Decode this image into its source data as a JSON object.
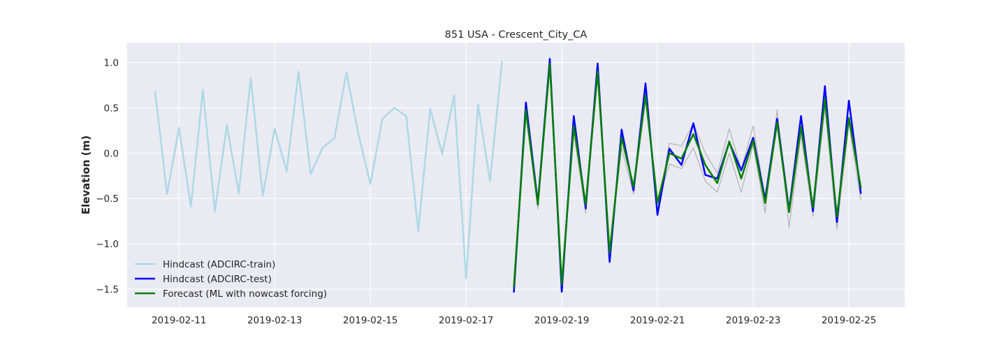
{
  "chart_data": {
    "type": "line",
    "title": "851 USA - Crescent_City_CA",
    "xlabel": "",
    "ylabel": "Elevation (m)",
    "x_axis": "date",
    "xlim": [
      "2019-02-09T22:00",
      "2019-02-26T04:00"
    ],
    "ylim": [
      -1.7,
      1.22
    ],
    "x_ticks": [
      "2019-02-11",
      "2019-02-13",
      "2019-02-15",
      "2019-02-17",
      "2019-02-19",
      "2019-02-21",
      "2019-02-23",
      "2019-02-25"
    ],
    "y_ticks": [
      -1.5,
      -1.0,
      -0.5,
      0.0,
      0.5,
      1.0
    ],
    "y_tick_labels": [
      "−1.5",
      "−1.0",
      "−0.5",
      "0.0",
      "0.5",
      "1.0"
    ],
    "grid": true,
    "background": "#eaeaf2",
    "legend_position": "lower-left",
    "series": [
      {
        "name": "Hindcast (ADCIRC-train)",
        "color": "#add8e6",
        "line_width": 2.5,
        "x": [
          "2019-02-10T12:00",
          "2019-02-10T18:00",
          "2019-02-11T00:00",
          "2019-02-11T06:00",
          "2019-02-11T12:00",
          "2019-02-11T18:00",
          "2019-02-12T00:00",
          "2019-02-12T06:00",
          "2019-02-12T12:00",
          "2019-02-12T18:00",
          "2019-02-13T00:00",
          "2019-02-13T06:00",
          "2019-02-13T12:00",
          "2019-02-13T18:00",
          "2019-02-14T00:00",
          "2019-02-14T06:00",
          "2019-02-14T12:00",
          "2019-02-14T18:00",
          "2019-02-15T00:00",
          "2019-02-15T06:00",
          "2019-02-15T12:00",
          "2019-02-15T18:00",
          "2019-02-16T00:00",
          "2019-02-16T06:00",
          "2019-02-16T12:00",
          "2019-02-16T18:00",
          "2019-02-17T00:00",
          "2019-02-17T06:00",
          "2019-02-17T12:00",
          "2019-02-17T18:00"
        ],
        "values": [
          0.68,
          -0.45,
          0.28,
          -0.59,
          0.7,
          -0.64,
          0.31,
          -0.44,
          0.83,
          -0.47,
          0.27,
          -0.2,
          0.9,
          -0.23,
          0.06,
          0.17,
          0.89,
          0.21,
          -0.34,
          0.38,
          0.5,
          0.41,
          -0.86,
          0.49,
          -0.01,
          0.64,
          -1.38,
          0.54,
          -0.31,
          1.01
        ]
      },
      {
        "name": "",
        "color": "#b3b3b3",
        "line_width": 1.2,
        "x": [
          "2019-02-18T00:00",
          "2019-02-18T06:00",
          "2019-02-18T12:00",
          "2019-02-18T18:00",
          "2019-02-19T00:00",
          "2019-02-19T06:00",
          "2019-02-19T12:00",
          "2019-02-19T18:00",
          "2019-02-20T00:00",
          "2019-02-20T06:00",
          "2019-02-20T12:00",
          "2019-02-20T18:00",
          "2019-02-21T00:00",
          "2019-02-21T06:00",
          "2019-02-21T12:00",
          "2019-02-21T18:00",
          "2019-02-22T00:00",
          "2019-02-22T06:00",
          "2019-02-22T12:00",
          "2019-02-22T18:00",
          "2019-02-23T00:00",
          "2019-02-23T06:00",
          "2019-02-23T12:00",
          "2019-02-23T18:00",
          "2019-02-24T00:00",
          "2019-02-24T06:00",
          "2019-02-24T12:00",
          "2019-02-24T18:00",
          "2019-02-25T00:00",
          "2019-02-25T06:00"
        ],
        "values": [
          -1.48,
          0.42,
          -0.62,
          1.06,
          -1.42,
          0.22,
          -0.66,
          0.88,
          -1.12,
          0.06,
          -0.45,
          0.58,
          -0.56,
          -0.12,
          -0.17,
          0.06,
          -0.31,
          -0.43,
          0.0,
          -0.43,
          0.09,
          -0.66,
          0.48,
          -0.82,
          0.2,
          -0.7,
          0.5,
          -0.84,
          0.33,
          -0.52
        ]
      },
      {
        "name": "",
        "color": "#b3b3b3",
        "line_width": 1.2,
        "x": [
          "2019-02-18T00:00",
          "2019-02-18T06:00",
          "2019-02-18T12:00",
          "2019-02-18T18:00",
          "2019-02-19T00:00",
          "2019-02-19T06:00",
          "2019-02-19T12:00",
          "2019-02-19T18:00",
          "2019-02-20T00:00",
          "2019-02-20T06:00",
          "2019-02-20T12:00",
          "2019-02-20T18:00",
          "2019-02-21T00:00",
          "2019-02-21T06:00",
          "2019-02-21T12:00",
          "2019-02-21T18:00",
          "2019-02-22T00:00",
          "2019-02-22T06:00",
          "2019-02-22T12:00",
          "2019-02-22T18:00",
          "2019-02-23T00:00",
          "2019-02-23T06:00",
          "2019-02-23T12:00",
          "2019-02-23T18:00",
          "2019-02-24T00:00",
          "2019-02-24T06:00",
          "2019-02-24T12:00",
          "2019-02-24T18:00",
          "2019-02-25T00:00",
          "2019-02-25T06:00"
        ],
        "values": [
          -1.5,
          0.5,
          -0.5,
          1.02,
          -1.5,
          0.36,
          -0.58,
          0.96,
          -1.18,
          0.22,
          -0.38,
          0.72,
          -0.62,
          0.11,
          0.08,
          0.33,
          0.0,
          -0.22,
          0.27,
          -0.18,
          0.3,
          -0.5,
          0.35,
          -0.6,
          0.4,
          -0.6,
          0.7,
          -0.72,
          0.55,
          -0.42
        ]
      },
      {
        "name": "Hindcast (ADCIRC-test)",
        "color": "#0000ff",
        "line_width": 2.5,
        "x": [
          "2019-02-18T00:00",
          "2019-02-18T06:00",
          "2019-02-18T12:00",
          "2019-02-18T18:00",
          "2019-02-19T00:00",
          "2019-02-19T06:00",
          "2019-02-19T12:00",
          "2019-02-19T18:00",
          "2019-02-20T00:00",
          "2019-02-20T06:00",
          "2019-02-20T12:00",
          "2019-02-20T18:00",
          "2019-02-21T00:00",
          "2019-02-21T06:00",
          "2019-02-21T12:00",
          "2019-02-21T18:00",
          "2019-02-22T00:00",
          "2019-02-22T06:00",
          "2019-02-22T12:00",
          "2019-02-22T18:00",
          "2019-02-23T00:00",
          "2019-02-23T06:00",
          "2019-02-23T12:00",
          "2019-02-23T18:00",
          "2019-02-24T00:00",
          "2019-02-24T06:00",
          "2019-02-24T12:00",
          "2019-02-24T18:00",
          "2019-02-25T00:00",
          "2019-02-25T06:00"
        ],
        "values": [
          -1.53,
          0.56,
          -0.55,
          1.04,
          -1.53,
          0.41,
          -0.61,
          0.99,
          -1.2,
          0.26,
          -0.41,
          0.77,
          -0.68,
          0.05,
          -0.13,
          0.33,
          -0.24,
          -0.28,
          0.12,
          -0.19,
          0.17,
          -0.51,
          0.38,
          -0.63,
          0.41,
          -0.64,
          0.74,
          -0.76,
          0.58,
          -0.44
        ]
      },
      {
        "name": "Forecast (ML with nowcast forcing)",
        "color": "#008000",
        "line_width": 2.5,
        "x": [
          "2019-02-18T00:00",
          "2019-02-18T06:00",
          "2019-02-18T12:00",
          "2019-02-18T18:00",
          "2019-02-19T00:00",
          "2019-02-19T06:00",
          "2019-02-19T12:00",
          "2019-02-19T18:00",
          "2019-02-20T00:00",
          "2019-02-20T06:00",
          "2019-02-20T12:00",
          "2019-02-20T18:00",
          "2019-02-21T00:00",
          "2019-02-21T06:00",
          "2019-02-21T12:00",
          "2019-02-21T18:00",
          "2019-02-22T00:00",
          "2019-02-22T06:00",
          "2019-02-22T12:00",
          "2019-02-22T18:00",
          "2019-02-23T00:00",
          "2019-02-23T06:00",
          "2019-02-23T12:00",
          "2019-02-23T18:00",
          "2019-02-24T00:00",
          "2019-02-24T06:00",
          "2019-02-24T12:00",
          "2019-02-24T18:00",
          "2019-02-25T00:00",
          "2019-02-25T06:00"
        ],
        "values": [
          -1.47,
          0.48,
          -0.57,
          0.99,
          -1.45,
          0.3,
          -0.57,
          0.9,
          -1.1,
          0.17,
          -0.37,
          0.64,
          -0.55,
          0.0,
          -0.06,
          0.21,
          -0.13,
          -0.33,
          0.13,
          -0.28,
          0.14,
          -0.55,
          0.34,
          -0.65,
          0.29,
          -0.6,
          0.6,
          -0.7,
          0.39,
          -0.38
        ]
      }
    ]
  }
}
